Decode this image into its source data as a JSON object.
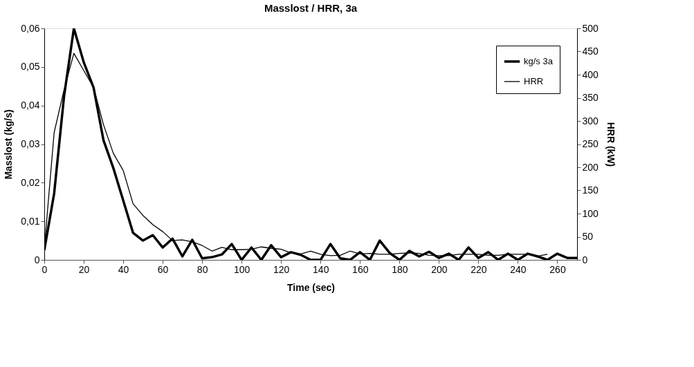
{
  "chart_data": {
    "type": "line",
    "title": "Masslost / HRR, 3a",
    "xlabel": "Time (sec)",
    "ylabel": "Masslost (kg/s)",
    "y2label": "HRR (kW)",
    "x": [
      0,
      5,
      10,
      15,
      20,
      25,
      30,
      35,
      40,
      45,
      50,
      55,
      60,
      65,
      70,
      75,
      80,
      85,
      90,
      95,
      100,
      105,
      110,
      115,
      120,
      125,
      130,
      135,
      140,
      145,
      150,
      155,
      160,
      165,
      170,
      175,
      180,
      185,
      190,
      195,
      200,
      205,
      210,
      215,
      220,
      225,
      230,
      235,
      240,
      245,
      250,
      255,
      260,
      265,
      270
    ],
    "xlim": [
      0,
      270
    ],
    "xticks": [
      0,
      20,
      40,
      60,
      80,
      100,
      120,
      140,
      160,
      180,
      200,
      220,
      240,
      260
    ],
    "ylim": [
      0,
      0.06
    ],
    "yticks": [
      0,
      {
        "value": 0.01,
        "label": "0,01"
      },
      {
        "value": 0.02,
        "label": "0,02"
      },
      {
        "value": 0.03,
        "label": "0,03"
      },
      {
        "value": 0.04,
        "label": "0,04"
      },
      {
        "value": 0.05,
        "label": "0,05"
      },
      {
        "value": 0.06,
        "label": "0,06"
      }
    ],
    "y2lim": [
      0,
      500
    ],
    "y2ticks": [
      0,
      50,
      100,
      150,
      200,
      250,
      300,
      350,
      400,
      450,
      500
    ],
    "legend": "top right",
    "grid": false,
    "marker": "none",
    "line_style": "solid",
    "series": [
      {
        "name": "kg/s 3a",
        "color": "#000000",
        "values": [
          0.0025,
          0.0172,
          0.0423,
          0.06,
          0.0512,
          0.0446,
          0.031,
          0.0238,
          0.0154,
          0.007,
          0.005,
          0.0064,
          0.0032,
          0.0055,
          0.0009,
          0.0052,
          0.0004,
          0.0007,
          0.0014,
          0.0041,
          0,
          0.0032,
          0,
          0.0038,
          0.0007,
          0.002,
          0.0013,
          0,
          0,
          0.0041,
          0.0004,
          0,
          0.002,
          0,
          0.005,
          0.0018,
          0,
          0.0023,
          0.0009,
          0.0021,
          0.0005,
          0.0016,
          0,
          0.0032,
          0.0005,
          0.002,
          0,
          0.0016,
          0,
          0.0016,
          0.0009,
          0,
          0.0016,
          0.0005,
          0.0005
        ]
      },
      {
        "name": "HRR",
        "color": "#000000",
        "axis": "y2",
        "values": [
          24,
          275,
          367,
          446,
          409,
          372,
          292,
          230,
          193,
          121,
          96,
          76,
          61,
          42,
          43,
          39,
          31,
          19,
          27,
          22,
          22,
          23,
          28,
          25,
          23,
          15,
          13,
          19,
          12,
          9,
          10,
          19,
          13,
          14,
          12,
          12,
          14,
          15,
          14,
          10,
          9,
          9,
          12,
          12,
          12,
          10,
          10,
          12,
          12,
          12,
          8,
          12,
          null,
          null,
          null
        ]
      }
    ]
  }
}
